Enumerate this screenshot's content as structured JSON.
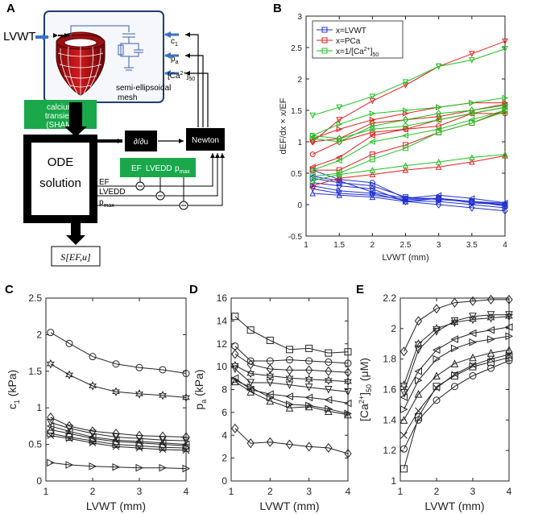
{
  "panels": {
    "A": "A",
    "B": "B",
    "C": "C",
    "D": "D",
    "E": "E"
  },
  "diagram": {
    "input_label": "LVWT",
    "mesh_label_1": "semi-ellipsoidal",
    "mesh_label_2": "mesh",
    "param_c1": "c",
    "param_c1_sub": "1",
    "param_pa": "p",
    "param_pa_sub": "a",
    "param_ca": "[Ca",
    "param_ca_sup": "2+",
    "param_ca_end": "]",
    "param_ca_sub": "50",
    "calcium_label_1": "calcium",
    "calcium_label_2": "transient",
    "calcium_label_3": "(SHAM)",
    "ode_label_1": "ODE",
    "ode_label_2": "solution",
    "partial_label": "∂/∂u",
    "newton_label": "Newton",
    "target_ef": "EF",
    "target_lvedd": "LVEDD",
    "target_pmax": "p",
    "target_pmax_sub": "max",
    "out_ef": "EF",
    "out_lvedd": "LVEDD",
    "out_pmax": "p",
    "out_pmax_sub": "max",
    "sensitivity_label": "S[EF,u]",
    "colors": {
      "green": "#1aa84b",
      "blue_arrow": "#3a6fc4",
      "mesh_red": "#c0161a",
      "box_border": "#1f3b73"
    }
  },
  "chart_data": [
    {
      "id": "B",
      "type": "line",
      "title": "",
      "xlabel": "LVWT  (mm)",
      "ylabel": "dEF/dx × x/EF",
      "xlim": [
        1,
        4
      ],
      "ylim": [
        -0.5,
        3
      ],
      "xticks": [
        1,
        1.5,
        2,
        2.5,
        3,
        3.5,
        4
      ],
      "yticks": [
        -0.5,
        0,
        0.5,
        1,
        1.5,
        2,
        2.5,
        3
      ],
      "x": [
        1.1,
        1.5,
        2,
        2.5,
        3,
        3.5,
        4
      ],
      "legend": [
        {
          "label": "x=LVWT",
          "color": "#2030d0"
        },
        {
          "label": "x=PCa",
          "color": "#e02020"
        },
        {
          "label": "x=1/[Ca",
          "sup": "2+",
          "end": "]",
          "sub": "50",
          "color": "#20c020"
        }
      ],
      "series": [
        {
          "group": "LVWT",
          "color": "#2030d0",
          "marker": "circle",
          "values": [
            0.55,
            0.4,
            0.35,
            0.1,
            0.1,
            0.05,
            0.0
          ]
        },
        {
          "group": "LVWT",
          "color": "#2030d0",
          "marker": "square",
          "values": [
            0.42,
            0.35,
            0.3,
            0.12,
            0.08,
            0.05,
            -0.02
          ]
        },
        {
          "group": "LVWT",
          "color": "#2030d0",
          "marker": "diamond",
          "values": [
            0.35,
            0.3,
            0.25,
            0.05,
            0.0,
            -0.05,
            -0.1
          ]
        },
        {
          "group": "LVWT",
          "color": "#2030d0",
          "marker": "triangle-up",
          "values": [
            0.18,
            0.15,
            0.12,
            0.05,
            0.1,
            0.05,
            0.02
          ]
        },
        {
          "group": "LVWT",
          "color": "#2030d0",
          "marker": "triangle-down",
          "values": [
            0.25,
            0.18,
            0.15,
            0.08,
            0.1,
            0.03,
            0.0
          ]
        },
        {
          "group": "LVWT",
          "color": "#2030d0",
          "marker": "triangle-left",
          "values": [
            0.45,
            0.38,
            0.2,
            0.1,
            0.15,
            0.1,
            0.03
          ]
        },
        {
          "group": "LVWT",
          "color": "#2030d0",
          "marker": "triangle-right",
          "values": [
            0.3,
            0.22,
            0.18,
            0.06,
            0.05,
            0.0,
            -0.05
          ]
        },
        {
          "group": "PCa",
          "color": "#e02020",
          "marker": "triangle-down",
          "values": [
            1.0,
            1.35,
            1.65,
            1.9,
            2.2,
            2.4,
            2.6
          ]
        },
        {
          "group": "PCa",
          "color": "#e02020",
          "marker": "triangle-right",
          "values": [
            1.05,
            1.2,
            1.35,
            1.45,
            1.55,
            1.62,
            1.62
          ]
        },
        {
          "group": "PCa",
          "color": "#e02020",
          "marker": "diamond",
          "values": [
            1.0,
            1.05,
            1.3,
            1.35,
            1.4,
            1.5,
            1.6
          ]
        },
        {
          "group": "PCa",
          "color": "#e02020",
          "marker": "circle",
          "values": [
            0.8,
            1.0,
            1.15,
            1.2,
            1.25,
            1.45,
            1.45
          ]
        },
        {
          "group": "PCa",
          "color": "#e02020",
          "marker": "triangle-left",
          "values": [
            0.6,
            0.75,
            1.1,
            1.2,
            1.35,
            1.45,
            1.55
          ]
        },
        {
          "group": "PCa",
          "color": "#e02020",
          "marker": "square",
          "values": [
            0.55,
            0.55,
            0.8,
            0.95,
            1.15,
            1.3,
            1.5
          ]
        },
        {
          "group": "PCa",
          "color": "#e02020",
          "marker": "triangle-up",
          "values": [
            0.3,
            0.42,
            0.48,
            0.55,
            0.6,
            0.68,
            0.78
          ]
        },
        {
          "group": "Ca50",
          "color": "#20c020",
          "marker": "triangle-down",
          "values": [
            1.42,
            1.55,
            1.72,
            1.95,
            2.2,
            2.3,
            2.48
          ]
        },
        {
          "group": "Ca50",
          "color": "#20c020",
          "marker": "triangle-right",
          "values": [
            1.1,
            1.28,
            1.45,
            1.5,
            1.55,
            1.62,
            1.7
          ]
        },
        {
          "group": "Ca50",
          "color": "#20c020",
          "marker": "diamond",
          "values": [
            1.05,
            1.0,
            1.25,
            1.35,
            1.45,
            1.5,
            1.58
          ]
        },
        {
          "group": "Ca50",
          "color": "#20c020",
          "marker": "circle",
          "values": [
            1.1,
            1.05,
            1.2,
            1.25,
            1.35,
            1.45,
            1.55
          ]
        },
        {
          "group": "Ca50",
          "color": "#20c020",
          "marker": "triangle-left",
          "values": [
            0.55,
            0.7,
            1.0,
            1.1,
            1.2,
            1.35,
            1.5
          ]
        },
        {
          "group": "Ca50",
          "color": "#20c020",
          "marker": "square",
          "values": [
            0.45,
            0.5,
            0.72,
            0.9,
            1.15,
            1.3,
            1.48
          ]
        },
        {
          "group": "Ca50",
          "color": "#20c020",
          "marker": "triangle-up",
          "values": [
            0.38,
            0.48,
            0.55,
            0.62,
            0.68,
            0.75,
            0.8
          ]
        }
      ]
    },
    {
      "id": "C",
      "type": "line",
      "xlabel": "LVWT (mm)",
      "ylabel": "c",
      "ylabel_sub": "1",
      "ylabel_end": " (kPa)",
      "xlim": [
        1,
        4
      ],
      "ylim": [
        0,
        2.5
      ],
      "xticks": [
        1,
        2,
        3,
        4
      ],
      "yticks": [
        0,
        0.5,
        1,
        1.5,
        2,
        2.5
      ],
      "x": [
        1.1,
        1.5,
        2,
        2.5,
        3,
        3.5,
        4
      ],
      "series": [
        {
          "marker": "circle",
          "values": [
            2.03,
            1.88,
            1.7,
            1.6,
            1.55,
            1.52,
            1.47
          ]
        },
        {
          "marker": "hexagram",
          "values": [
            1.6,
            1.45,
            1.3,
            1.22,
            1.19,
            1.17,
            1.14
          ]
        },
        {
          "marker": "diamond",
          "values": [
            0.87,
            0.75,
            0.68,
            0.65,
            0.62,
            0.61,
            0.6
          ]
        },
        {
          "marker": "triangle-down",
          "values": [
            0.8,
            0.72,
            0.65,
            0.6,
            0.58,
            0.56,
            0.55
          ]
        },
        {
          "marker": "triangle-left",
          "values": [
            0.75,
            0.68,
            0.6,
            0.56,
            0.54,
            0.52,
            0.5
          ]
        },
        {
          "marker": "triangle-up",
          "values": [
            0.7,
            0.65,
            0.58,
            0.54,
            0.52,
            0.5,
            0.48
          ]
        },
        {
          "marker": "square",
          "values": [
            0.65,
            0.6,
            0.55,
            0.5,
            0.48,
            0.46,
            0.45
          ]
        },
        {
          "marker": "x",
          "values": [
            0.62,
            0.58,
            0.52,
            0.47,
            0.45,
            0.43,
            0.42
          ]
        },
        {
          "marker": "triangle-right",
          "values": [
            0.25,
            0.22,
            0.2,
            0.19,
            0.18,
            0.18,
            0.17
          ]
        }
      ]
    },
    {
      "id": "D",
      "type": "line",
      "xlabel": "LVWT (mm)",
      "ylabel": "p",
      "ylabel_sub": "a",
      "ylabel_end": " (kPa)",
      "xlim": [
        1,
        4
      ],
      "ylim": [
        0,
        16
      ],
      "xticks": [
        1,
        2,
        3,
        4
      ],
      "yticks": [
        0,
        2,
        4,
        6,
        8,
        10,
        12,
        14,
        16
      ],
      "x": [
        1.1,
        1.5,
        2,
        2.5,
        3,
        3.5,
        4
      ],
      "series": [
        {
          "marker": "square",
          "values": [
            14.4,
            13.2,
            12.3,
            11.5,
            11.6,
            11.2,
            11.3
          ]
        },
        {
          "marker": "circle",
          "values": [
            11.8,
            10.5,
            10.5,
            10.6,
            10.5,
            10.4,
            10.3
          ]
        },
        {
          "marker": "diamond",
          "values": [
            11.1,
            10.2,
            9.8,
            9.7,
            9.7,
            9.6,
            9.5
          ]
        },
        {
          "marker": "hexagram",
          "values": [
            10.1,
            9.4,
            9.2,
            9.0,
            8.9,
            8.8,
            8.7
          ]
        },
        {
          "marker": "triangle-down",
          "values": [
            9.8,
            8.6,
            8.6,
            8.4,
            8.2,
            8.0,
            7.8
          ]
        },
        {
          "marker": "triangle-left",
          "values": [
            9.0,
            8.0,
            7.6,
            7.4,
            7.3,
            7.1,
            6.8
          ]
        },
        {
          "marker": "triangle-right",
          "values": [
            8.8,
            8.2,
            7.3,
            6.7,
            6.6,
            6.3,
            5.9
          ]
        },
        {
          "marker": "triangle-up",
          "values": [
            8.7,
            7.8,
            7.0,
            6.4,
            6.5,
            6.1,
            5.8
          ]
        },
        {
          "marker": "diamond",
          "values": [
            4.6,
            3.3,
            3.4,
            3.2,
            3.0,
            2.9,
            2.4
          ]
        }
      ]
    },
    {
      "id": "E",
      "type": "line",
      "xlabel": "LVWT (mm)",
      "ylabel": "[Ca",
      "ylabel_sup": "2+",
      "ylabel_mid": "]",
      "ylabel_sub": "50",
      "ylabel_end": " (μM)",
      "xlim": [
        1,
        4
      ],
      "ylim": [
        1,
        2.2
      ],
      "xticks": [
        1,
        2,
        3,
        4
      ],
      "yticks": [
        1,
        1.2,
        1.4,
        1.6,
        1.8,
        2,
        2.2
      ],
      "x": [
        1.1,
        1.5,
        2,
        2.5,
        3,
        3.5,
        4
      ],
      "series": [
        {
          "marker": "diamond",
          "values": [
            1.85,
            2.05,
            2.13,
            2.17,
            2.18,
            2.19,
            2.19
          ]
        },
        {
          "marker": "hexagram",
          "values": [
            1.63,
            1.9,
            2.0,
            2.04,
            2.06,
            2.07,
            2.08
          ]
        },
        {
          "marker": "triangle-down",
          "values": [
            1.58,
            1.86,
            1.98,
            2.05,
            2.08,
            2.09,
            2.09
          ]
        },
        {
          "marker": "triangle-left",
          "values": [
            1.55,
            1.72,
            1.86,
            1.93,
            1.97,
            1.99,
            2.01
          ]
        },
        {
          "marker": "triangle-right",
          "values": [
            1.47,
            1.66,
            1.8,
            1.87,
            1.91,
            1.93,
            1.95
          ]
        },
        {
          "marker": "triangle-up",
          "values": [
            1.4,
            1.57,
            1.69,
            1.77,
            1.81,
            1.84,
            1.86
          ]
        },
        {
          "marker": "x",
          "values": [
            1.3,
            1.46,
            1.61,
            1.7,
            1.76,
            1.8,
            1.83
          ]
        },
        {
          "marker": "square",
          "values": [
            1.08,
            1.42,
            1.62,
            1.69,
            1.75,
            1.78,
            1.81
          ]
        },
        {
          "marker": "circle",
          "values": [
            1.21,
            1.4,
            1.53,
            1.62,
            1.69,
            1.74,
            1.79
          ]
        }
      ]
    }
  ]
}
